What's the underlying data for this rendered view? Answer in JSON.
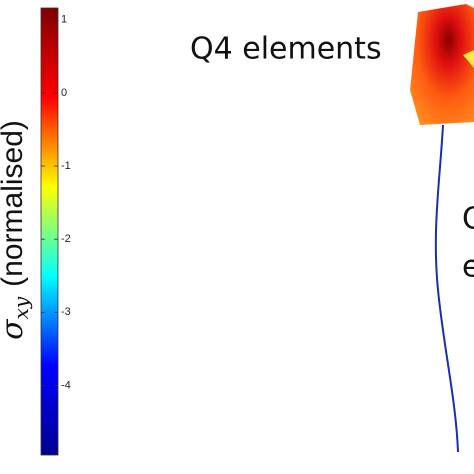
{
  "chart_data": {
    "type": "colorbar",
    "axis_label": {
      "symbol": "σ",
      "subscript": "xy",
      "text": "(normalised)"
    },
    "colormap": [
      "#00008f",
      "#0000ff",
      "#00ffff",
      "#ffff00",
      "#ff0000",
      "#800000"
    ],
    "ylim": [
      -4.95,
      1.16
    ],
    "yticks": [
      1,
      0,
      -1,
      -2,
      -3,
      -4
    ],
    "annotations": [
      "Q4 elements",
      "Q",
      "e"
    ]
  }
}
